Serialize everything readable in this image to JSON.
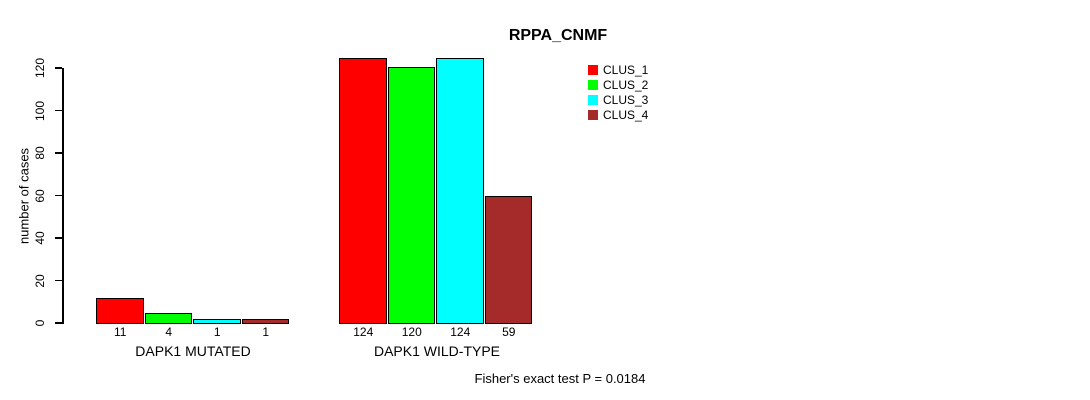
{
  "chart_data": {
    "type": "bar",
    "title": "RPPA_CNMF",
    "ylabel": "number of cases",
    "xlabel": "",
    "ylim": [
      0,
      120
    ],
    "yticks": [
      0,
      20,
      40,
      60,
      80,
      100,
      120
    ],
    "grid": false,
    "legend_position": "top-right",
    "categories": [
      "DAPK1 MUTATED",
      "DAPK1 WILD-TYPE"
    ],
    "series": [
      {
        "name": "CLUS_1",
        "color": "#FF0000",
        "values": [
          11,
          124
        ]
      },
      {
        "name": "CLUS_2",
        "color": "#00FF00",
        "values": [
          4,
          120
        ]
      },
      {
        "name": "CLUS_3",
        "color": "#00FFFF",
        "values": [
          1,
          124
        ]
      },
      {
        "name": "CLUS_4",
        "color": "#A52A2A",
        "values": [
          1,
          59
        ]
      }
    ],
    "bar_value_labels_shown": true,
    "annotation": "Fisher's exact test P = 0.0184"
  }
}
